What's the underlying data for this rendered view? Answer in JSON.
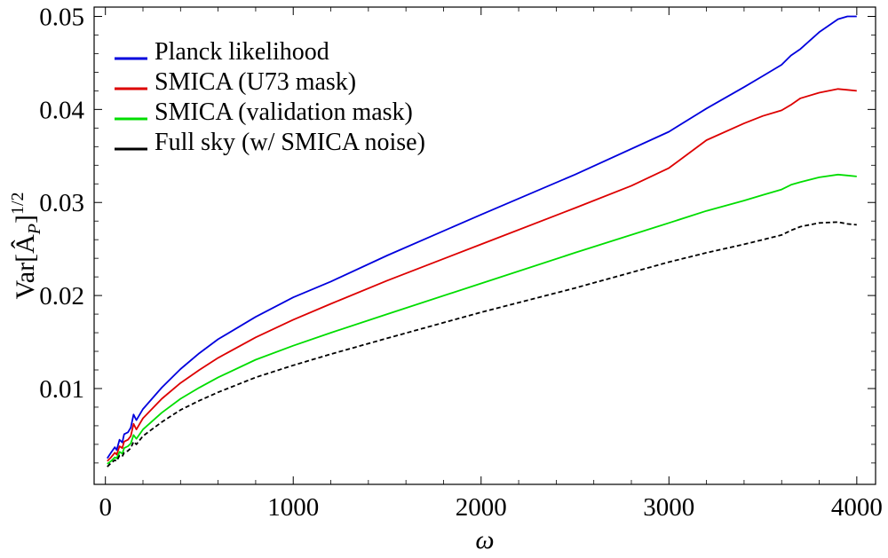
{
  "chart_data": {
    "type": "line",
    "title": "",
    "xlabel": "ω",
    "ylabel_main": "Var[Â",
    "ylabel_sub": "P",
    "ylabel_end": "]",
    "ylabel_sup": "1/2",
    "xlim": [
      -60,
      4100
    ],
    "ylim": [
      -0.0003,
      0.051
    ],
    "xticks": [
      0,
      1000,
      2000,
      3000,
      4000
    ],
    "xtick_labels": [
      "0",
      "1000",
      "2000",
      "3000",
      "4000"
    ],
    "yticks": [
      0.01,
      0.02,
      0.03,
      0.04,
      0.05
    ],
    "ytick_labels": [
      "0.01",
      "0.02",
      "0.03",
      "0.04",
      "0.05"
    ],
    "grid": false,
    "legend_position": "top-left",
    "series": [
      {
        "name": "Planck likelihood",
        "color": "#0000dd",
        "dash": false,
        "x": [
          10,
          30,
          50,
          60,
          75,
          90,
          100,
          120,
          135,
          150,
          165,
          200,
          300,
          400,
          500,
          600,
          800,
          1000,
          1200,
          1500,
          2000,
          2500,
          3000,
          3200,
          3400,
          3500,
          3600,
          3650,
          3700,
          3800,
          3900,
          3950,
          4000
        ],
        "y": [
          0.0025,
          0.0031,
          0.0037,
          0.0034,
          0.0045,
          0.0042,
          0.0051,
          0.0053,
          0.0058,
          0.0072,
          0.0066,
          0.0078,
          0.0101,
          0.0121,
          0.0138,
          0.0153,
          0.0177,
          0.0198,
          0.0215,
          0.0243,
          0.0287,
          0.033,
          0.0376,
          0.0401,
          0.0424,
          0.0436,
          0.0448,
          0.0458,
          0.0465,
          0.0483,
          0.0497,
          0.05,
          0.05
        ]
      },
      {
        "name": "SMICA (U73 mask)",
        "color": "#dd0000",
        "dash": false,
        "x": [
          10,
          30,
          50,
          60,
          75,
          90,
          100,
          120,
          135,
          150,
          165,
          200,
          300,
          400,
          500,
          600,
          800,
          1000,
          1200,
          1500,
          2000,
          2500,
          2800,
          3000,
          3200,
          3400,
          3500,
          3600,
          3650,
          3700,
          3800,
          3900,
          3950,
          4000
        ],
        "y": [
          0.0022,
          0.0026,
          0.0031,
          0.0029,
          0.0038,
          0.0036,
          0.0043,
          0.0045,
          0.0049,
          0.0062,
          0.0056,
          0.0068,
          0.0089,
          0.0106,
          0.012,
          0.0133,
          0.0155,
          0.0174,
          0.0191,
          0.0216,
          0.0255,
          0.0294,
          0.0318,
          0.0337,
          0.0367,
          0.0385,
          0.0393,
          0.0399,
          0.0405,
          0.0412,
          0.0418,
          0.0422,
          0.0421,
          0.042
        ]
      },
      {
        "name": "SMICA (validation mask)",
        "color": "#00dd00",
        "dash": false,
        "x": [
          10,
          30,
          50,
          60,
          75,
          90,
          100,
          120,
          135,
          150,
          165,
          200,
          300,
          400,
          500,
          600,
          800,
          1000,
          1200,
          1500,
          2000,
          2500,
          3000,
          3200,
          3400,
          3500,
          3600,
          3650,
          3700,
          3800,
          3900,
          3950,
          4000
        ],
        "y": [
          0.0019,
          0.0022,
          0.0026,
          0.0025,
          0.0032,
          0.003,
          0.0036,
          0.0038,
          0.0041,
          0.005,
          0.0046,
          0.0056,
          0.0074,
          0.0089,
          0.0101,
          0.0112,
          0.0131,
          0.0146,
          0.016,
          0.018,
          0.0213,
          0.0246,
          0.0278,
          0.0291,
          0.0302,
          0.0308,
          0.0314,
          0.0319,
          0.0322,
          0.0327,
          0.033,
          0.0329,
          0.0328
        ]
      },
      {
        "name": "Full sky (w/ SMICA noise)",
        "color": "#000000",
        "dash": true,
        "x": [
          10,
          30,
          50,
          60,
          75,
          90,
          100,
          120,
          135,
          150,
          165,
          200,
          300,
          400,
          500,
          600,
          800,
          1000,
          1200,
          1500,
          2000,
          2500,
          3000,
          3200,
          3400,
          3500,
          3600,
          3650,
          3700,
          3800,
          3900,
          3950,
          4000
        ],
        "y": [
          0.0016,
          0.002,
          0.0023,
          0.0022,
          0.0028,
          0.0027,
          0.0031,
          0.0033,
          0.0036,
          0.0043,
          0.004,
          0.0049,
          0.0064,
          0.0077,
          0.0087,
          0.0096,
          0.0112,
          0.0125,
          0.0137,
          0.0154,
          0.0182,
          0.0208,
          0.0236,
          0.0246,
          0.0255,
          0.026,
          0.0265,
          0.027,
          0.0274,
          0.0278,
          0.0279,
          0.0277,
          0.0276
        ]
      }
    ]
  }
}
